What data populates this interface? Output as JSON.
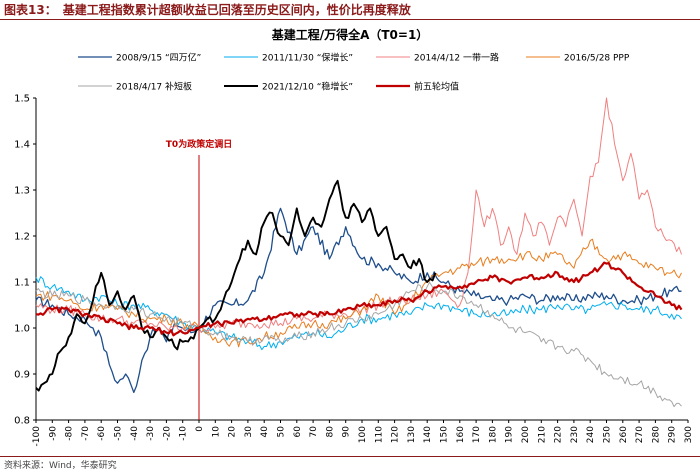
{
  "header": {
    "label": "图表13：",
    "title": "基建工程指数累计超额收益已回落至历史区间内，性价比再度释放"
  },
  "source": "资料来源：Wind，华泰研究",
  "chart_data": {
    "type": "line",
    "title": "基建工程/万得全A（T0=1）",
    "annotation": "T0为政策定调日",
    "annotation_x": 0,
    "xlim": [
      -100,
      300
    ],
    "ylim": [
      0.8,
      1.5
    ],
    "x_ticks": [
      -100,
      -90,
      -80,
      -70,
      -60,
      -50,
      -40,
      -30,
      -20,
      -10,
      0,
      10,
      20,
      30,
      40,
      50,
      60,
      70,
      80,
      90,
      100,
      110,
      120,
      130,
      140,
      150,
      160,
      170,
      180,
      190,
      200,
      210,
      220,
      230,
      240,
      250,
      260,
      270,
      280,
      290,
      300
    ],
    "y_ticks": [
      0.8,
      0.9,
      1.0,
      1.1,
      1.2,
      1.3,
      1.4,
      1.5
    ],
    "y_tick_labels": [
      "0.8",
      "0.9",
      "1.0",
      "1.1",
      "1.2",
      "1.3",
      "1.4",
      "1.5"
    ],
    "grid": false,
    "legend_position": "top",
    "series": [
      {
        "name": "2008/9/15 “四万亿”",
        "color": "#1f4e8c",
        "width": 1.3,
        "x": [
          -100,
          -90,
          -80,
          -70,
          -65,
          -60,
          -55,
          -50,
          -45,
          -40,
          -35,
          -30,
          -25,
          -20,
          -15,
          -10,
          -5,
          0,
          10,
          20,
          30,
          40,
          50,
          60,
          70,
          80,
          90,
          100,
          110,
          120,
          130,
          140,
          150,
          160,
          170,
          180,
          190,
          200,
          210,
          220,
          230,
          240,
          250,
          260,
          270,
          280,
          290,
          296
        ],
        "y": [
          1.06,
          1.05,
          1.03,
          1.02,
          1.0,
          0.98,
          0.92,
          0.88,
          0.9,
          0.86,
          0.93,
          0.98,
          1.0,
          0.97,
          1.01,
          1.0,
          0.99,
          1.0,
          1.05,
          1.05,
          1.06,
          1.12,
          1.26,
          1.16,
          1.22,
          1.15,
          1.22,
          1.15,
          1.14,
          1.12,
          1.1,
          1.12,
          1.1,
          1.08,
          1.07,
          1.06,
          1.06,
          1.07,
          1.06,
          1.07,
          1.06,
          1.07,
          1.07,
          1.06,
          1.06,
          1.07,
          1.08,
          1.08
        ]
      },
      {
        "name": "2011/11/30 “保增长”",
        "color": "#00aeef",
        "width": 1.0,
        "x": [
          -100,
          -90,
          -80,
          -70,
          -60,
          -50,
          -40,
          -30,
          -20,
          -10,
          0,
          10,
          20,
          30,
          40,
          50,
          60,
          70,
          80,
          90,
          100,
          110,
          120,
          130,
          140,
          150,
          160,
          170,
          180,
          190,
          200,
          210,
          220,
          230,
          240,
          250,
          260,
          270,
          280,
          290,
          296
        ],
        "y": [
          1.11,
          1.09,
          1.08,
          1.06,
          1.07,
          1.05,
          1.05,
          1.04,
          1.03,
          1.01,
          1.0,
          0.99,
          0.98,
          0.97,
          0.96,
          0.97,
          0.98,
          0.99,
          0.98,
          1.0,
          1.02,
          1.02,
          1.03,
          1.03,
          1.05,
          1.05,
          1.04,
          1.03,
          1.03,
          1.03,
          1.04,
          1.04,
          1.05,
          1.04,
          1.04,
          1.05,
          1.05,
          1.04,
          1.04,
          1.03,
          1.02
        ]
      },
      {
        "name": "2014/4/12 一带一路",
        "color": "#f08080",
        "width": 1.0,
        "x": [
          -100,
          -90,
          -80,
          -70,
          -60,
          -50,
          -40,
          -30,
          -20,
          -10,
          0,
          10,
          20,
          30,
          40,
          50,
          60,
          70,
          80,
          90,
          100,
          110,
          120,
          130,
          140,
          150,
          160,
          165,
          170,
          175,
          180,
          185,
          190,
          195,
          200,
          205,
          210,
          215,
          220,
          225,
          230,
          235,
          240,
          245,
          250,
          255,
          260,
          265,
          270,
          275,
          280,
          285,
          290,
          296
        ],
        "y": [
          1.05,
          1.04,
          1.04,
          1.03,
          1.02,
          1.02,
          1.01,
          1.01,
          1.0,
          1.0,
          1.0,
          1.0,
          1.01,
          1.01,
          1.01,
          1.01,
          1.02,
          1.02,
          1.03,
          1.03,
          1.04,
          1.05,
          1.06,
          1.06,
          1.07,
          1.08,
          1.05,
          1.12,
          1.3,
          1.22,
          1.26,
          1.18,
          1.22,
          1.16,
          1.25,
          1.2,
          1.23,
          1.18,
          1.24,
          1.22,
          1.28,
          1.2,
          1.33,
          1.36,
          1.5,
          1.4,
          1.32,
          1.38,
          1.28,
          1.3,
          1.22,
          1.2,
          1.19,
          1.16
        ]
      },
      {
        "name": "2016/5/28 PPP",
        "color": "#e87d1e",
        "width": 1.0,
        "x": [
          -100,
          -90,
          -80,
          -70,
          -60,
          -50,
          -40,
          -30,
          -20,
          -10,
          0,
          10,
          20,
          30,
          40,
          50,
          60,
          70,
          80,
          90,
          100,
          110,
          120,
          130,
          140,
          150,
          160,
          170,
          180,
          190,
          200,
          210,
          220,
          230,
          240,
          250,
          260,
          270,
          280,
          290,
          296
        ],
        "y": [
          1.07,
          1.07,
          1.06,
          1.04,
          1.05,
          1.04,
          1.03,
          1.02,
          1.02,
          1.01,
          1.0,
          0.98,
          0.97,
          0.97,
          0.98,
          0.99,
          1.0,
          1.01,
          1.01,
          1.02,
          1.04,
          1.07,
          1.03,
          1.06,
          1.1,
          1.12,
          1.13,
          1.14,
          1.15,
          1.15,
          1.16,
          1.15,
          1.16,
          1.13,
          1.19,
          1.15,
          1.16,
          1.14,
          1.13,
          1.12,
          1.12
        ]
      },
      {
        "name": "2018/4/17 补短板",
        "color": "#a6a6a6",
        "width": 1.0,
        "x": [
          -100,
          -90,
          -80,
          -70,
          -60,
          -50,
          -40,
          -30,
          -20,
          -10,
          0,
          10,
          20,
          30,
          40,
          50,
          60,
          70,
          80,
          90,
          100,
          110,
          120,
          130,
          140,
          150,
          160,
          170,
          180,
          190,
          200,
          210,
          220,
          230,
          240,
          250,
          260,
          270,
          280,
          290,
          296
        ],
        "y": [
          1.08,
          1.07,
          1.07,
          1.06,
          1.05,
          1.05,
          1.04,
          1.03,
          1.02,
          1.01,
          1.0,
          0.99,
          0.98,
          0.97,
          0.98,
          0.97,
          0.98,
          0.99,
          1.0,
          1.01,
          1.02,
          1.03,
          1.05,
          1.08,
          1.09,
          1.08,
          1.07,
          1.05,
          1.03,
          1.0,
          0.99,
          0.97,
          0.96,
          0.95,
          0.93,
          0.9,
          0.89,
          0.88,
          0.86,
          0.84,
          0.83
        ]
      },
      {
        "name": "2021/12/10 “稳增长”",
        "color": "#000000",
        "width": 1.9,
        "x": [
          -100,
          -95,
          -90,
          -85,
          -80,
          -75,
          -70,
          -65,
          -60,
          -55,
          -50,
          -45,
          -40,
          -35,
          -30,
          -25,
          -20,
          -15,
          -10,
          -5,
          0,
          5,
          10,
          15,
          20,
          25,
          30,
          35,
          40,
          45,
          50,
          55,
          60,
          65,
          70,
          75,
          80,
          85,
          90,
          95,
          100,
          105,
          110,
          115,
          120,
          125,
          130,
          135,
          140,
          145
        ],
        "y": [
          0.87,
          0.88,
          0.9,
          0.95,
          0.98,
          1.03,
          1.01,
          1.06,
          1.12,
          1.05,
          1.08,
          1.04,
          1.07,
          1.0,
          0.98,
          1.0,
          0.98,
          0.96,
          0.97,
          0.98,
          1.0,
          1.02,
          1.02,
          1.06,
          1.1,
          1.15,
          1.19,
          1.16,
          1.23,
          1.25,
          1.2,
          1.18,
          1.26,
          1.2,
          1.24,
          1.22,
          1.28,
          1.32,
          1.24,
          1.27,
          1.23,
          1.26,
          1.2,
          1.22,
          1.15,
          1.16,
          1.13,
          1.15,
          1.1,
          1.12
        ]
      },
      {
        "name": "前五轮均值",
        "color": "#c00000",
        "width": 2.2,
        "x": [
          -100,
          -90,
          -80,
          -70,
          -60,
          -50,
          -40,
          -30,
          -20,
          -10,
          0,
          10,
          20,
          30,
          40,
          50,
          60,
          70,
          80,
          90,
          100,
          110,
          120,
          130,
          140,
          150,
          160,
          170,
          180,
          190,
          200,
          210,
          220,
          230,
          240,
          250,
          260,
          270,
          280,
          290,
          296
        ],
        "y": [
          1.03,
          1.04,
          1.04,
          1.03,
          1.02,
          1.01,
          1.0,
          1.0,
          0.99,
          0.99,
          1.0,
          1.01,
          1.01,
          1.02,
          1.02,
          1.03,
          1.03,
          1.03,
          1.03,
          1.04,
          1.05,
          1.05,
          1.06,
          1.06,
          1.08,
          1.09,
          1.09,
          1.1,
          1.11,
          1.1,
          1.11,
          1.11,
          1.12,
          1.1,
          1.12,
          1.14,
          1.12,
          1.09,
          1.07,
          1.05,
          1.04
        ]
      }
    ]
  }
}
